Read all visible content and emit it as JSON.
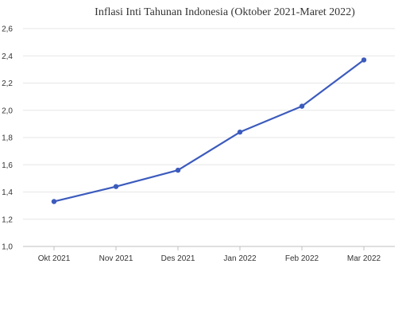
{
  "chart_data": {
    "type": "line",
    "title": "Inflasi Inti Tahunan Indonesia (Oktober 2021-Maret 2022)",
    "xlabel": "",
    "ylabel": "",
    "categories": [
      "Okt 2021",
      "Nov 2021",
      "Des 2021",
      "Jan 2022",
      "Feb 2022",
      "Mar 2022"
    ],
    "series": [
      {
        "values": [
          1.33,
          1.44,
          1.56,
          1.84,
          2.03,
          2.37
        ]
      }
    ],
    "ylim": [
      1.0,
      2.6
    ],
    "yticks": [
      "1,0",
      "1,2",
      "1,4",
      "1,6",
      "1,8",
      "2,0",
      "2,2",
      "2,4",
      "2,6"
    ],
    "grid": true,
    "legend": "none",
    "colors": {
      "line": "#3c5bbd",
      "grid": "#e6e6e6",
      "axis": "#bfbfbf"
    }
  }
}
